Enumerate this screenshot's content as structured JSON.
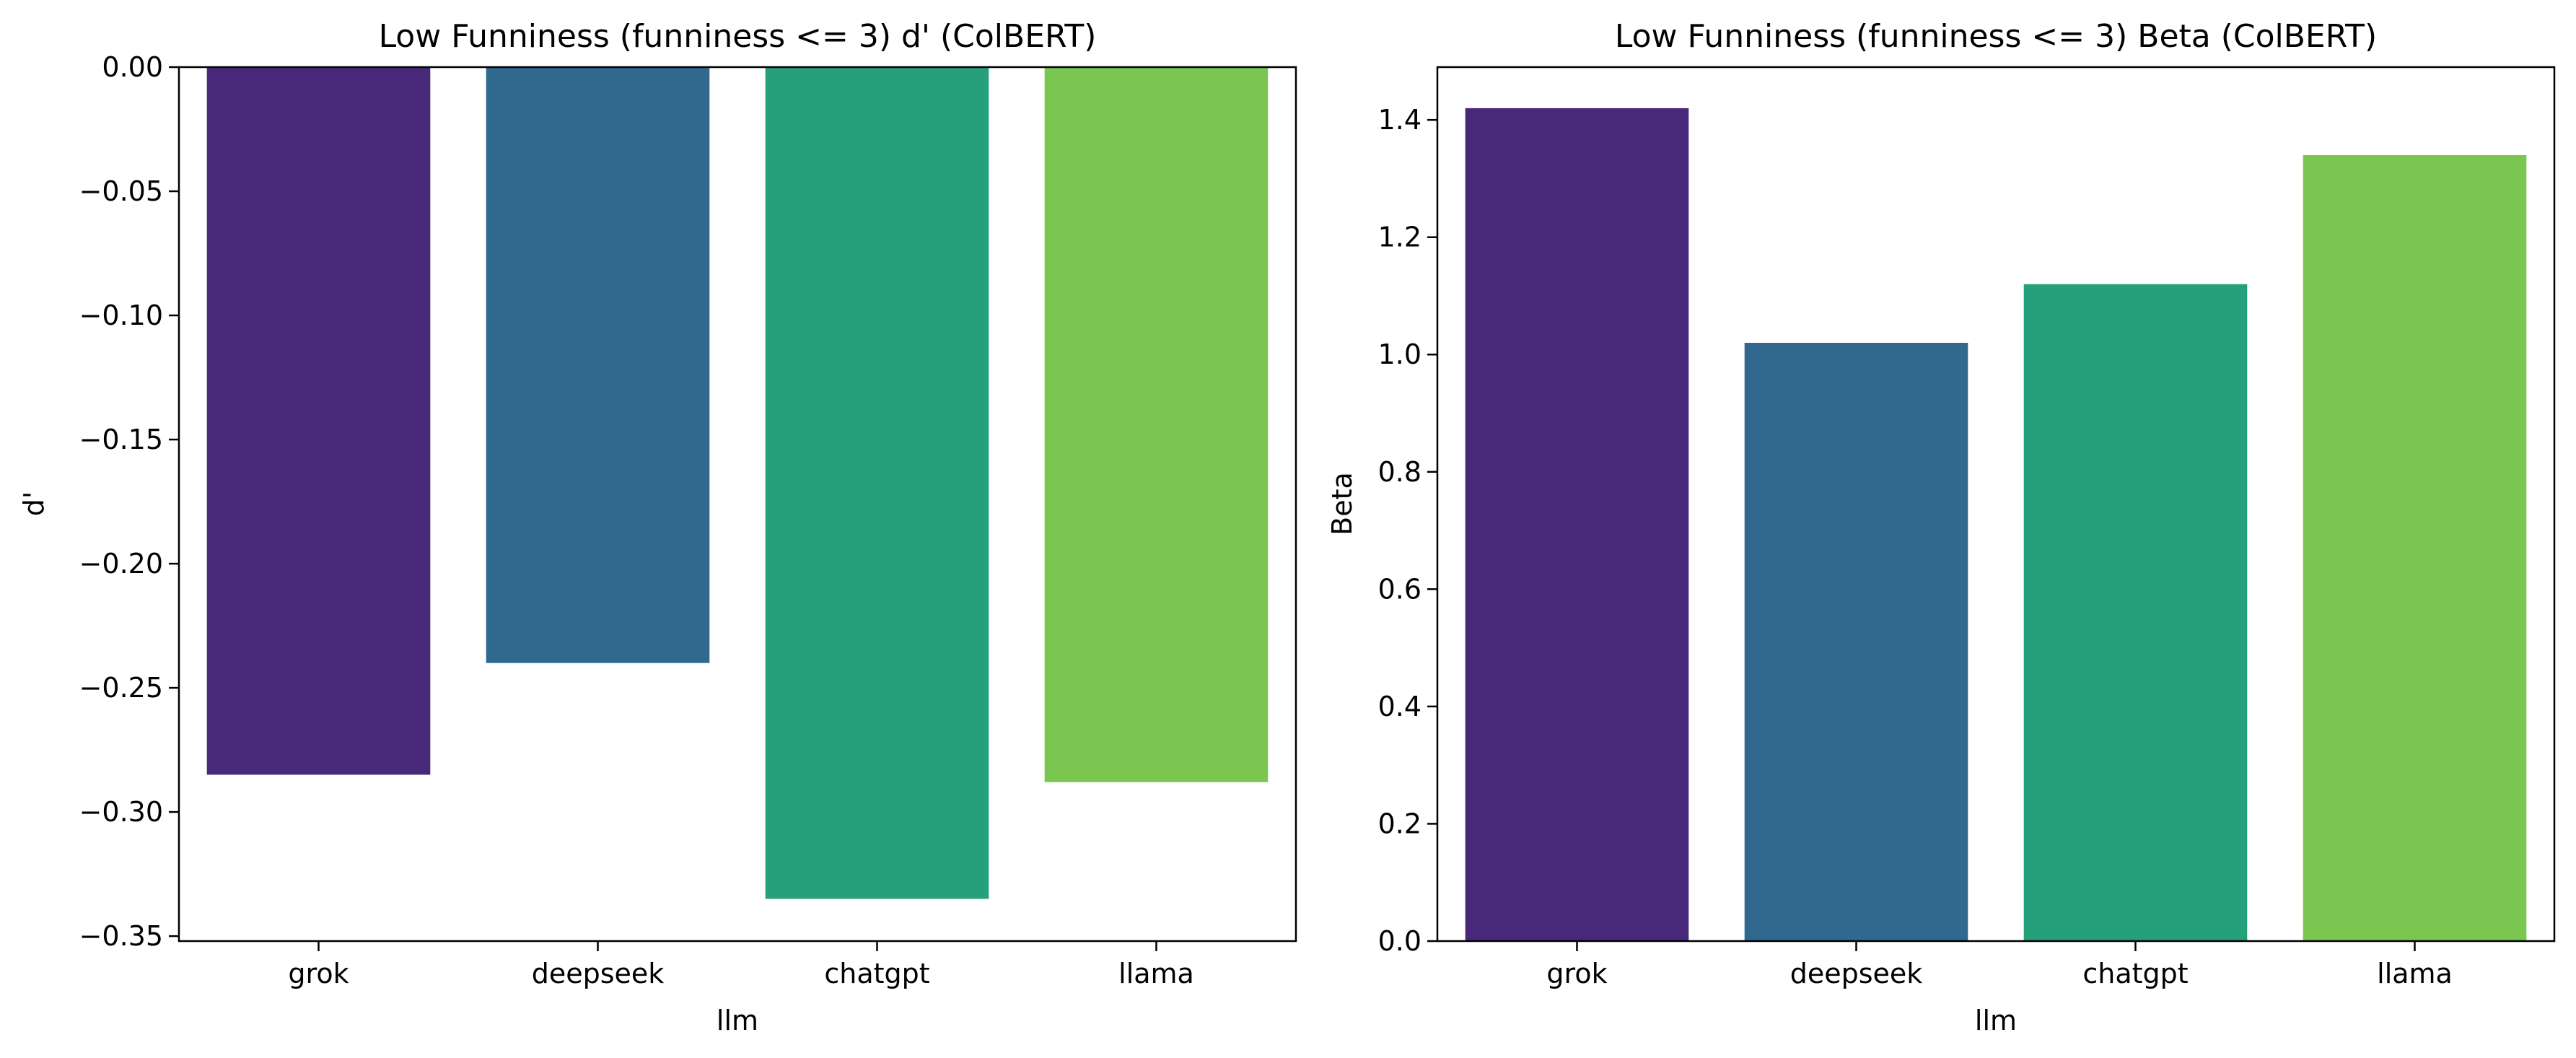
{
  "chart_data": [
    {
      "type": "bar",
      "title": "Low Funniness (funniness <= 3) d' (ColBERT)",
      "xlabel": "llm",
      "ylabel": "d'",
      "categories": [
        "grok",
        "deepseek",
        "chatgpt",
        "llama"
      ],
      "values": [
        -0.285,
        -0.24,
        -0.335,
        -0.288
      ],
      "colors": [
        "#482878",
        "#31688e",
        "#26a07a",
        "#7ac651"
      ],
      "ylim": [
        -0.352,
        0.0
      ],
      "yticks": [
        0.0,
        -0.05,
        -0.1,
        -0.15,
        -0.2,
        -0.25,
        -0.3,
        -0.35
      ],
      "ytick_labels": [
        "0.00",
        "−0.05",
        "−0.10",
        "−0.15",
        "−0.20",
        "−0.25",
        "−0.30",
        "−0.35"
      ],
      "grid": false
    },
    {
      "type": "bar",
      "title": "Low Funniness (funniness <= 3) Beta (ColBERT)",
      "xlabel": "llm",
      "ylabel": "Beta",
      "categories": [
        "grok",
        "deepseek",
        "chatgpt",
        "llama"
      ],
      "values": [
        1.42,
        1.02,
        1.12,
        1.34
      ],
      "colors": [
        "#482878",
        "#31688e",
        "#26a07a",
        "#7ac651"
      ],
      "ylim": [
        0.0,
        1.49
      ],
      "yticks": [
        0.0,
        0.2,
        0.4,
        0.6,
        0.8,
        1.0,
        1.2,
        1.4
      ],
      "ytick_labels": [
        "0.0",
        "0.2",
        "0.4",
        "0.6",
        "0.8",
        "1.0",
        "1.2",
        "1.4"
      ],
      "grid": false
    }
  ]
}
